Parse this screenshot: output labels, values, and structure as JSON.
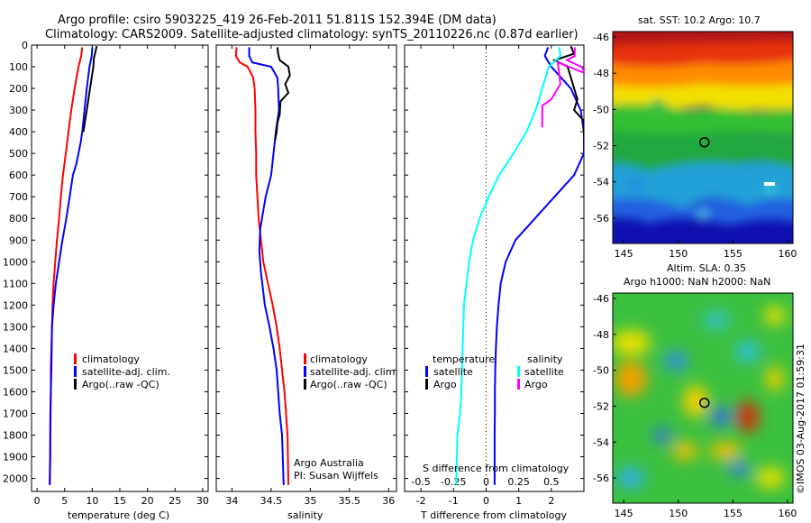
{
  "header": {
    "title_line1": "Argo profile: csiro 5903225_419 26-Feb-2011 51.811S 152.394E (DM data)",
    "title_line2": "Climatology: CARS2009. Satellite-adjusted climatology: synTS_20110226.nc (0.87d earlier)"
  },
  "colors": {
    "climatology": "#ff0000",
    "satellite": "#0000ff",
    "argo": "#000000",
    "s_satellite": "#00ffff",
    "s_argo": "#ff00ff"
  },
  "chart_data": [
    {
      "type": "line",
      "xlabel": "temperature (deg C)",
      "ylabel": "",
      "xlim": [
        -1,
        31
      ],
      "ylim": [
        2060,
        0
      ],
      "xticks": [
        0,
        5,
        10,
        15,
        20,
        25,
        30
      ],
      "yticks": [
        0,
        100,
        200,
        300,
        400,
        500,
        600,
        700,
        800,
        900,
        1000,
        1100,
        1200,
        1300,
        1400,
        1500,
        1600,
        1700,
        1800,
        1900,
        2000
      ],
      "legend": [
        "climatology",
        "satellite-adj. clim.",
        "Argo(..raw -QC)"
      ],
      "legend_placement": "lower-right",
      "series": [
        {
          "name": "climatology",
          "color": "#ff0000",
          "x": [
            8.2,
            8.0,
            7.5,
            6.8,
            6.2,
            5.7,
            5.2,
            4.7,
            4.3,
            4.0,
            3.6,
            3.3,
            3.0,
            2.8,
            2.7,
            2.6,
            2.5,
            2.5,
            2.4,
            2.4,
            2.3
          ],
          "y": [
            10,
            50,
            100,
            200,
            300,
            400,
            500,
            600,
            700,
            800,
            900,
            1000,
            1100,
            1200,
            1300,
            1400,
            1500,
            1600,
            1700,
            1800,
            2030
          ]
        },
        {
          "name": "satellite-adj. clim.",
          "color": "#0000ff",
          "x": [
            10.0,
            9.9,
            9.5,
            9.0,
            8.6,
            8.2,
            7.9,
            7.5,
            7.1,
            6.5,
            5.9,
            5.3,
            4.6,
            4.0,
            3.4,
            3.0,
            2.7,
            2.6,
            2.5,
            2.4,
            2.4,
            2.3
          ],
          "y": [
            10,
            50,
            100,
            200,
            300,
            400,
            450,
            500,
            550,
            600,
            700,
            800,
            900,
            1000,
            1100,
            1200,
            1300,
            1500,
            1600,
            1800,
            1900,
            2030
          ]
        },
        {
          "name": "Argo(..raw -QC)",
          "color": "#000000",
          "x": [
            10.8,
            10.6,
            10.3,
            10.2,
            9.9,
            9.6,
            9.3,
            9.0,
            8.7,
            8.4
          ],
          "y": [
            5,
            30,
            60,
            100,
            150,
            200,
            250,
            300,
            350,
            400
          ]
        }
      ]
    },
    {
      "type": "line",
      "xlabel": "salinity",
      "ylabel": "",
      "xlim": [
        33.8,
        36.1
      ],
      "ylim": [
        2060,
        0
      ],
      "xticks": [
        34,
        34.5,
        35,
        35.5,
        36
      ],
      "legend": [
        "climatology",
        "satellite-adj. clim.",
        "Argo(..raw -QC)"
      ],
      "legend_placement": "lower-right",
      "annotations": [
        "Argo Australia",
        "PI: Susan Wijffels"
      ],
      "series": [
        {
          "name": "climatology",
          "color": "#ff0000",
          "x": [
            34.06,
            34.05,
            34.1,
            34.2,
            34.27,
            34.29,
            34.3,
            34.3,
            34.31,
            34.31,
            34.34,
            34.4,
            34.46,
            34.52,
            34.57,
            34.61,
            34.64,
            34.67,
            34.69,
            34.71,
            34.72
          ],
          "y": [
            10,
            50,
            80,
            100,
            150,
            200,
            300,
            400,
            500,
            600,
            800,
            1000,
            1100,
            1200,
            1300,
            1400,
            1500,
            1600,
            1700,
            1800,
            2030
          ]
        },
        {
          "name": "satellite-adj. clim.",
          "color": "#0000ff",
          "x": [
            34.22,
            34.22,
            34.26,
            34.5,
            34.58,
            34.59,
            34.6,
            34.56,
            34.5,
            34.43,
            34.36,
            34.35,
            34.37,
            34.42,
            34.48,
            34.53,
            34.57,
            34.61,
            34.64,
            34.66
          ],
          "y": [
            10,
            50,
            80,
            100,
            150,
            200,
            300,
            400,
            600,
            700,
            850,
            950,
            1050,
            1200,
            1300,
            1400,
            1500,
            1700,
            1800,
            2030
          ]
        },
        {
          "name": "Argo(..raw -QC)",
          "color": "#000000",
          "x": [
            34.58,
            34.59,
            34.61,
            34.72,
            34.74,
            34.68,
            34.72,
            34.62,
            34.61,
            34.58,
            34.57,
            34.55
          ],
          "y": [
            10,
            40,
            70,
            100,
            140,
            180,
            220,
            260,
            320,
            360,
            400,
            440
          ]
        }
      ]
    },
    {
      "type": "line",
      "xlabel": "T difference from climatology",
      "x2label": "S difference from climatology",
      "xlim": [
        -2.5,
        3.0
      ],
      "x2lim": [
        -0.625,
        0.75
      ],
      "ylim": [
        2060,
        0
      ],
      "xticks": [
        -2,
        -1,
        0,
        1,
        2
      ],
      "x2ticks": [
        -0.5,
        -0.25,
        0,
        0.25,
        0.5
      ],
      "zero_line": "dotted",
      "legend_headers": [
        "temperature",
        "salinity"
      ],
      "legend": [
        "satellite",
        "Argo",
        "satellite",
        "Argo"
      ],
      "legend_placement": "lower-middle",
      "series": [
        {
          "name": "satellite",
          "variable": "temperature",
          "color": "#0000ff",
          "x": [
            1.9,
            1.8,
            2.0,
            2.6,
            2.9,
            3.0,
            3.0,
            2.7,
            2.1,
            1.5,
            0.9,
            0.6,
            0.45,
            0.38,
            0.33,
            0.3,
            0.28,
            0.27,
            0.27,
            0.26,
            0.26
          ],
          "y": [
            10,
            50,
            100,
            200,
            300,
            400,
            500,
            600,
            700,
            800,
            900,
            1000,
            1100,
            1200,
            1300,
            1400,
            1500,
            1600,
            1700,
            1800,
            2030
          ]
        },
        {
          "name": "Argo",
          "variable": "temperature",
          "color": "#000000",
          "x": [
            2.6,
            2.7,
            2.1,
            2.5,
            2.6,
            2.8,
            2.7,
            3.0,
            3.0
          ],
          "y": [
            5,
            40,
            70,
            100,
            150,
            250,
            300,
            350,
            420
          ]
        },
        {
          "name": "satellite",
          "variable": "salinity",
          "color": "#00ffff",
          "x": [
            0.56,
            0.57,
            0.5,
            0.48,
            0.43,
            0.38,
            0.31,
            0.21,
            0.1,
            0.02,
            -0.05,
            -0.1,
            -0.13,
            -0.15,
            -0.17,
            -0.18,
            -0.19,
            -0.2,
            -0.22,
            -0.23
          ],
          "y": [
            10,
            50,
            90,
            100,
            200,
            300,
            400,
            500,
            600,
            700,
            800,
            900,
            1000,
            1100,
            1200,
            1400,
            1600,
            1700,
            1800,
            2030
          ]
        },
        {
          "name": "Argo",
          "variable": "salinity",
          "color": "#ff00ff",
          "x": [
            0.68,
            0.68,
            0.62,
            0.73,
            0.76,
            0.55,
            0.57,
            0.5,
            0.43,
            0.43
          ],
          "y": [
            10,
            50,
            70,
            100,
            130,
            80,
            180,
            250,
            280,
            380
          ]
        }
      ]
    },
    {
      "type": "heatmap",
      "title": "sat. SST: 10.2  Argo: 10.7",
      "xlim": [
        144,
        160.5
      ],
      "ylim": [
        -57.4,
        -45.7
      ],
      "xticks": [
        145,
        150,
        155,
        160
      ],
      "yticks": [
        -46,
        -48,
        -50,
        -52,
        -54,
        -56
      ],
      "marker": {
        "x": 152.394,
        "y": -51.811
      }
    },
    {
      "type": "heatmap",
      "title": "Altim. SLA: 0.35",
      "subtitle": "Argo h1000: NaN h2000: NaN",
      "xlim": [
        144,
        160.5
      ],
      "ylim": [
        -57.4,
        -45.7
      ],
      "xticks": [
        145,
        150,
        155,
        160
      ],
      "yticks": [
        -46,
        -48,
        -50,
        -52,
        -54,
        -56
      ],
      "marker": {
        "x": 152.394,
        "y": -51.811
      }
    }
  ],
  "side_note": "©IMOS 03-Aug-2017 01:59:31"
}
